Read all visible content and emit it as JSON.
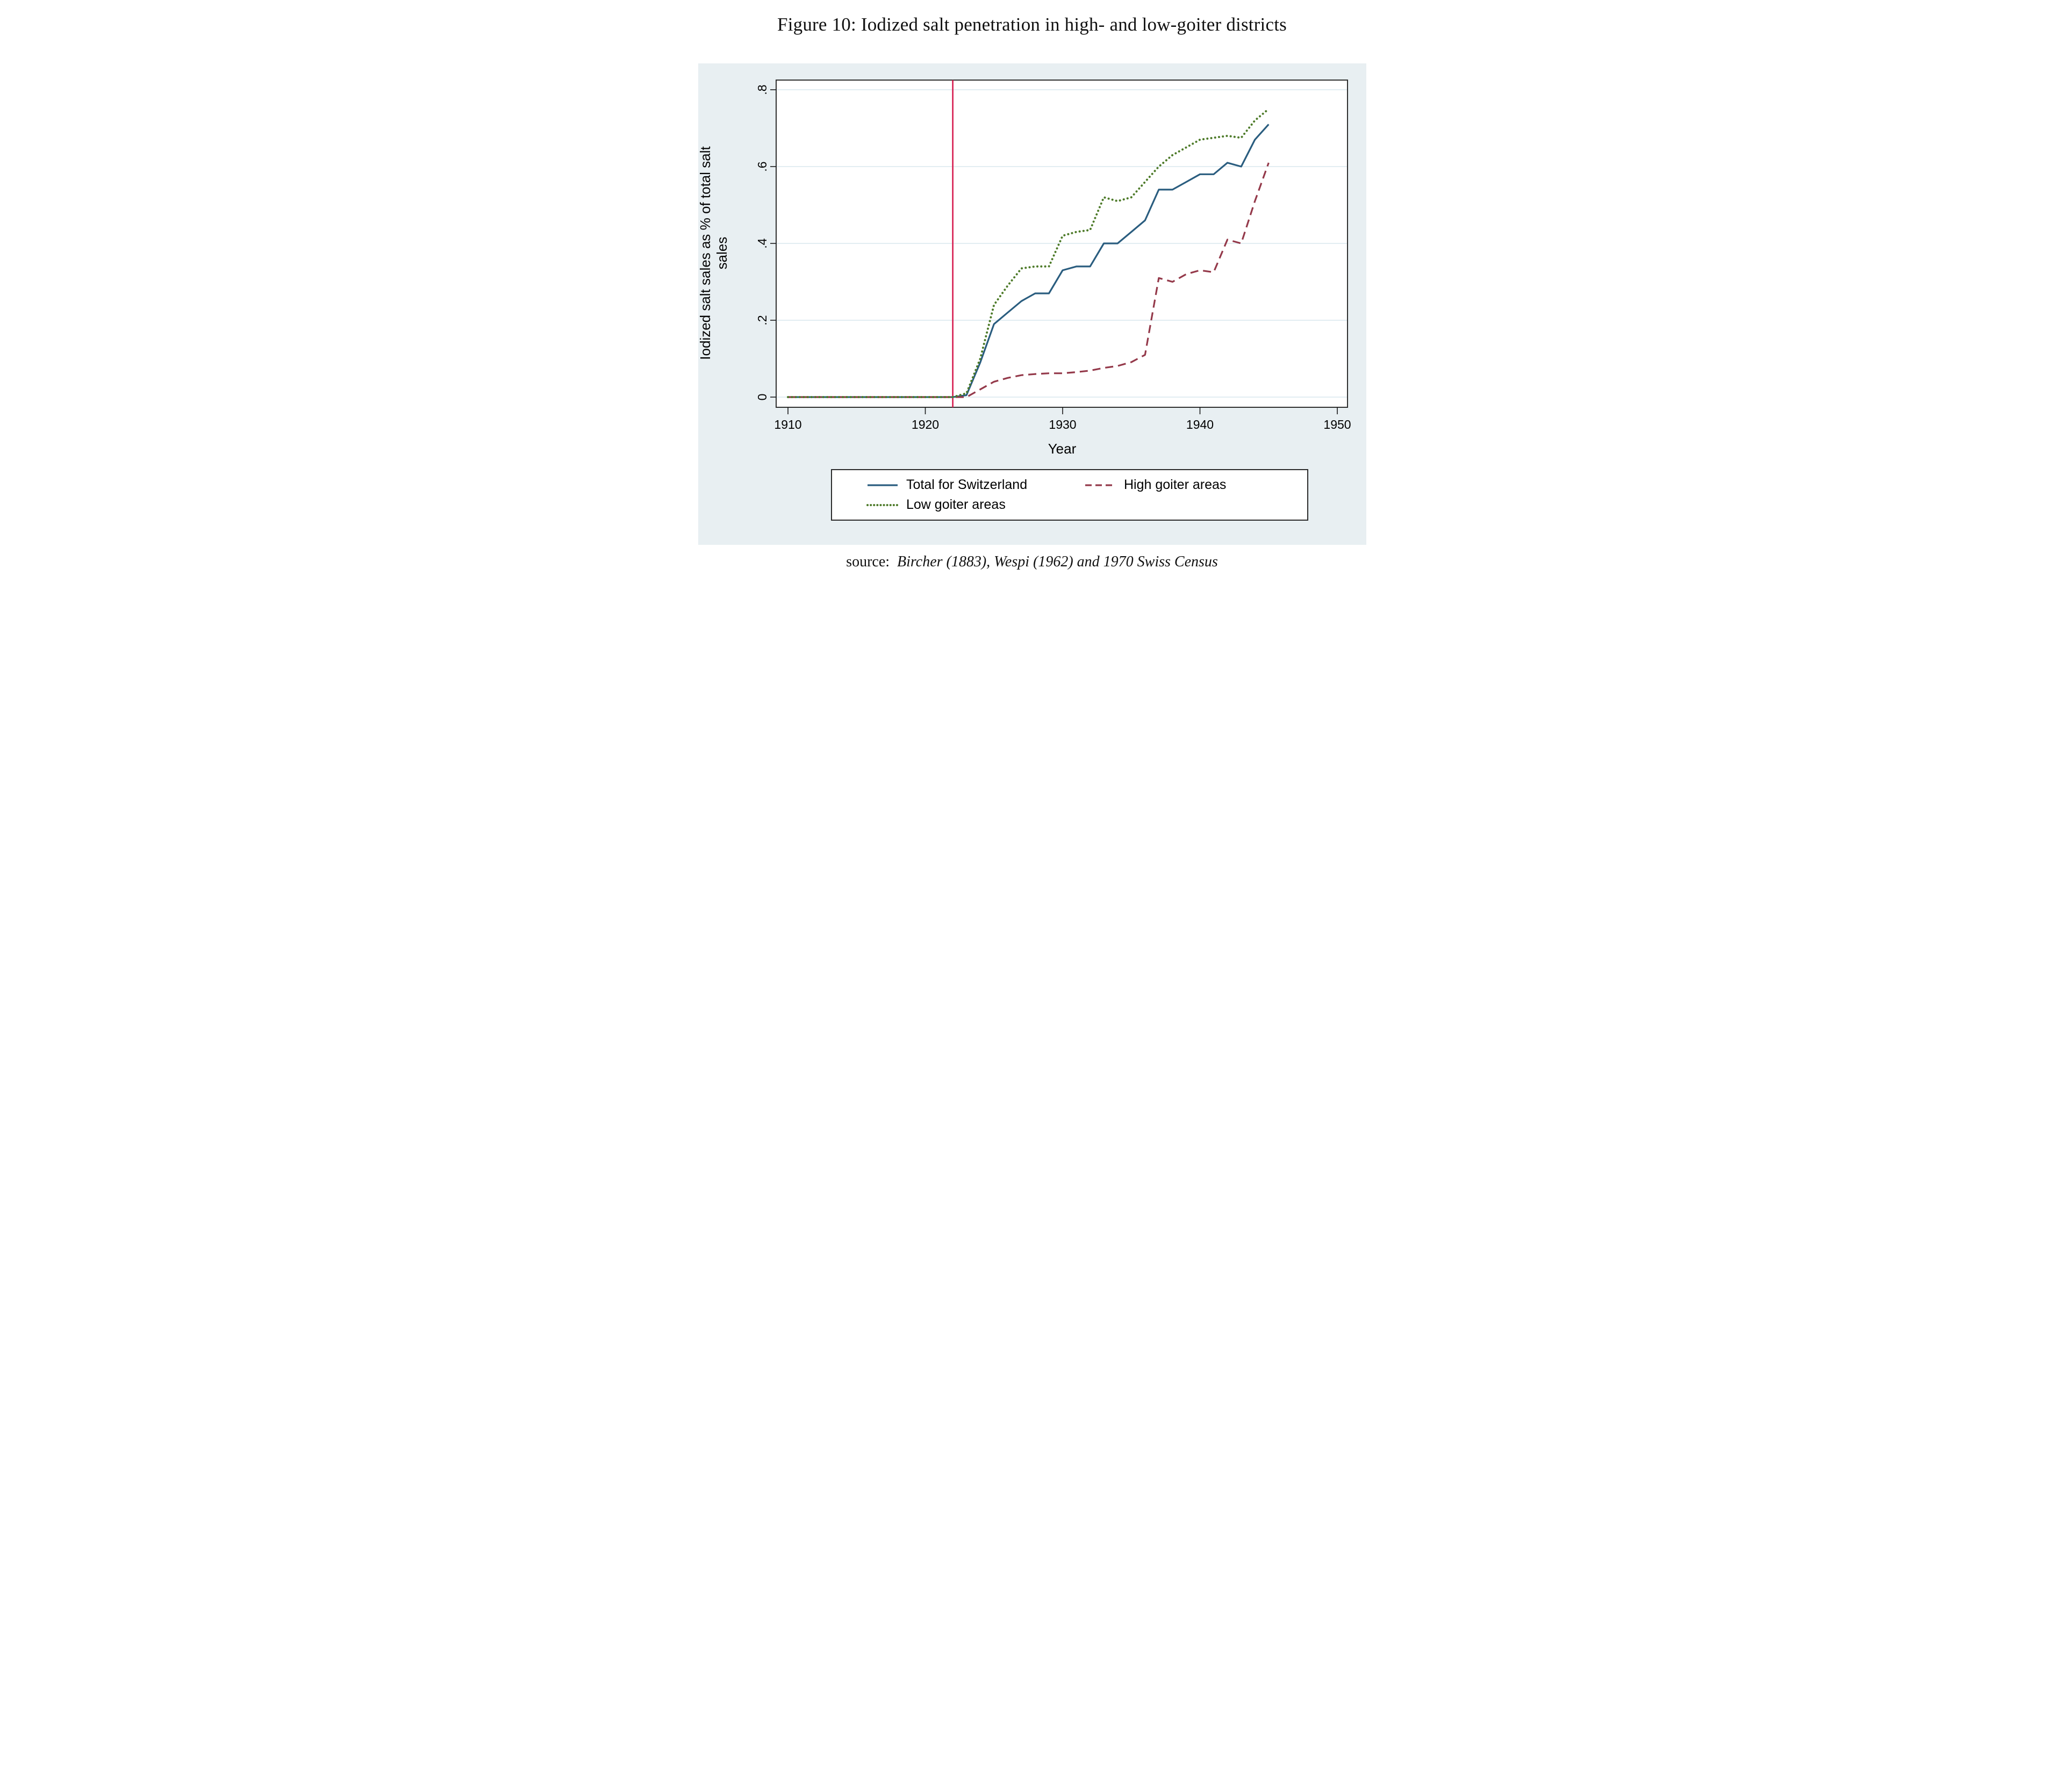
{
  "figure": {
    "title": "Figure 10: Iodized salt penetration in high- and low-goiter districts",
    "source_prefix": "source:",
    "source_text": "Bircher (1883), Wespi (1962) and 1970 Swiss Census"
  },
  "chart_data": {
    "type": "line",
    "title": "",
    "xlabel": "Year",
    "ylabel": "Iodized salt sales as % of total salt sales",
    "x_ticks": [
      1910,
      1920,
      1930,
      1940,
      1950
    ],
    "x_tick_labels": [
      "1910",
      "1920",
      "1930",
      "1940",
      "1950"
    ],
    "y_ticks": [
      0,
      0.2,
      0.4,
      0.6,
      0.8
    ],
    "y_tick_labels": [
      "0",
      ".2",
      ".4",
      ".6",
      ".8"
    ],
    "xlim": [
      1909.1,
      1950.7
    ],
    "ylim": [
      -0.027,
      0.825
    ],
    "grid": "horizontal",
    "legend_position": "bottom",
    "background_color": "#e8eff2",
    "plot_background": "#ffffff",
    "gridline_color": "#e2edf2",
    "vline": {
      "x": 1922,
      "color": "#d61a4d",
      "label": "iodization-start"
    },
    "x": [
      1910,
      1911,
      1912,
      1913,
      1914,
      1915,
      1916,
      1917,
      1918,
      1919,
      1920,
      1921,
      1922,
      1923,
      1924,
      1925,
      1926,
      1927,
      1928,
      1929,
      1930,
      1931,
      1932,
      1933,
      1934,
      1935,
      1936,
      1937,
      1938,
      1939,
      1940,
      1941,
      1942,
      1943,
      1944,
      1945
    ],
    "series": [
      {
        "name": "Total for Switzerland",
        "style": "solid",
        "color": "#2a5d7f",
        "values": [
          0,
          0,
          0,
          0,
          0,
          0,
          0,
          0,
          0,
          0,
          0,
          0,
          0,
          0.005,
          0.09,
          0.19,
          0.22,
          0.25,
          0.27,
          0.27,
          0.33,
          0.34,
          0.34,
          0.4,
          0.4,
          0.43,
          0.46,
          0.54,
          0.54,
          0.56,
          0.58,
          0.58,
          0.61,
          0.6,
          0.67,
          0.71
        ]
      },
      {
        "name": "High goiter areas",
        "style": "dashed",
        "color": "#94394a",
        "values": [
          0,
          0,
          0,
          0,
          0,
          0,
          0,
          0,
          0,
          0,
          0,
          0,
          0,
          0,
          0.02,
          0.04,
          0.05,
          0.057,
          0.06,
          0.062,
          0.062,
          0.065,
          0.069,
          0.076,
          0.081,
          0.091,
          0.11,
          0.31,
          0.3,
          0.32,
          0.33,
          0.325,
          0.41,
          0.4,
          0.51,
          0.61
        ]
      },
      {
        "name": "Low goiter areas",
        "style": "dotted",
        "color": "#4e7b2a",
        "values": [
          0,
          0,
          0,
          0,
          0,
          0,
          0,
          0,
          0,
          0,
          0,
          0,
          0,
          0.01,
          0.1,
          0.24,
          0.29,
          0.335,
          0.34,
          0.34,
          0.42,
          0.43,
          0.435,
          0.52,
          0.51,
          0.52,
          0.56,
          0.6,
          0.63,
          0.65,
          0.67,
          0.675,
          0.68,
          0.675,
          0.72,
          0.75
        ]
      }
    ]
  }
}
